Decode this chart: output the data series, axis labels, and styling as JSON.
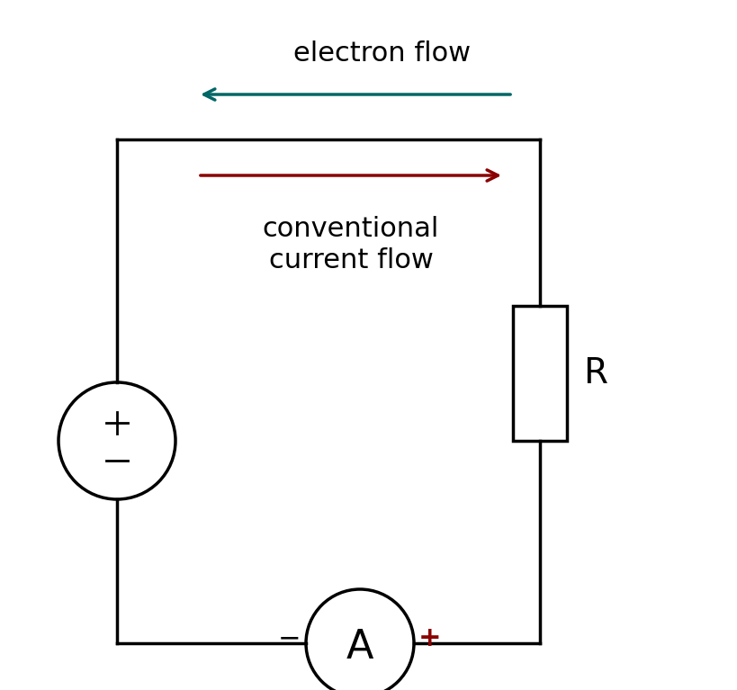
{
  "bg_color": "#ffffff",
  "electron_flow_color": "#006666",
  "conventional_flow_color": "#8b0000",
  "circuit_color": "#000000",
  "ammeter_sign_color": "#8b0000",
  "text_color": "#000000",
  "electron_flow_label": "electron flow",
  "conventional_label_line1": "conventional",
  "conventional_label_line2": "current flow",
  "resistor_label": "R",
  "ammeter_label": "A",
  "plus_label": "+",
  "minus_label_battery": "−",
  "plus_label_battery": "+",
  "minus_label_ammeter": "−",
  "plus_label_ammeter": "+"
}
